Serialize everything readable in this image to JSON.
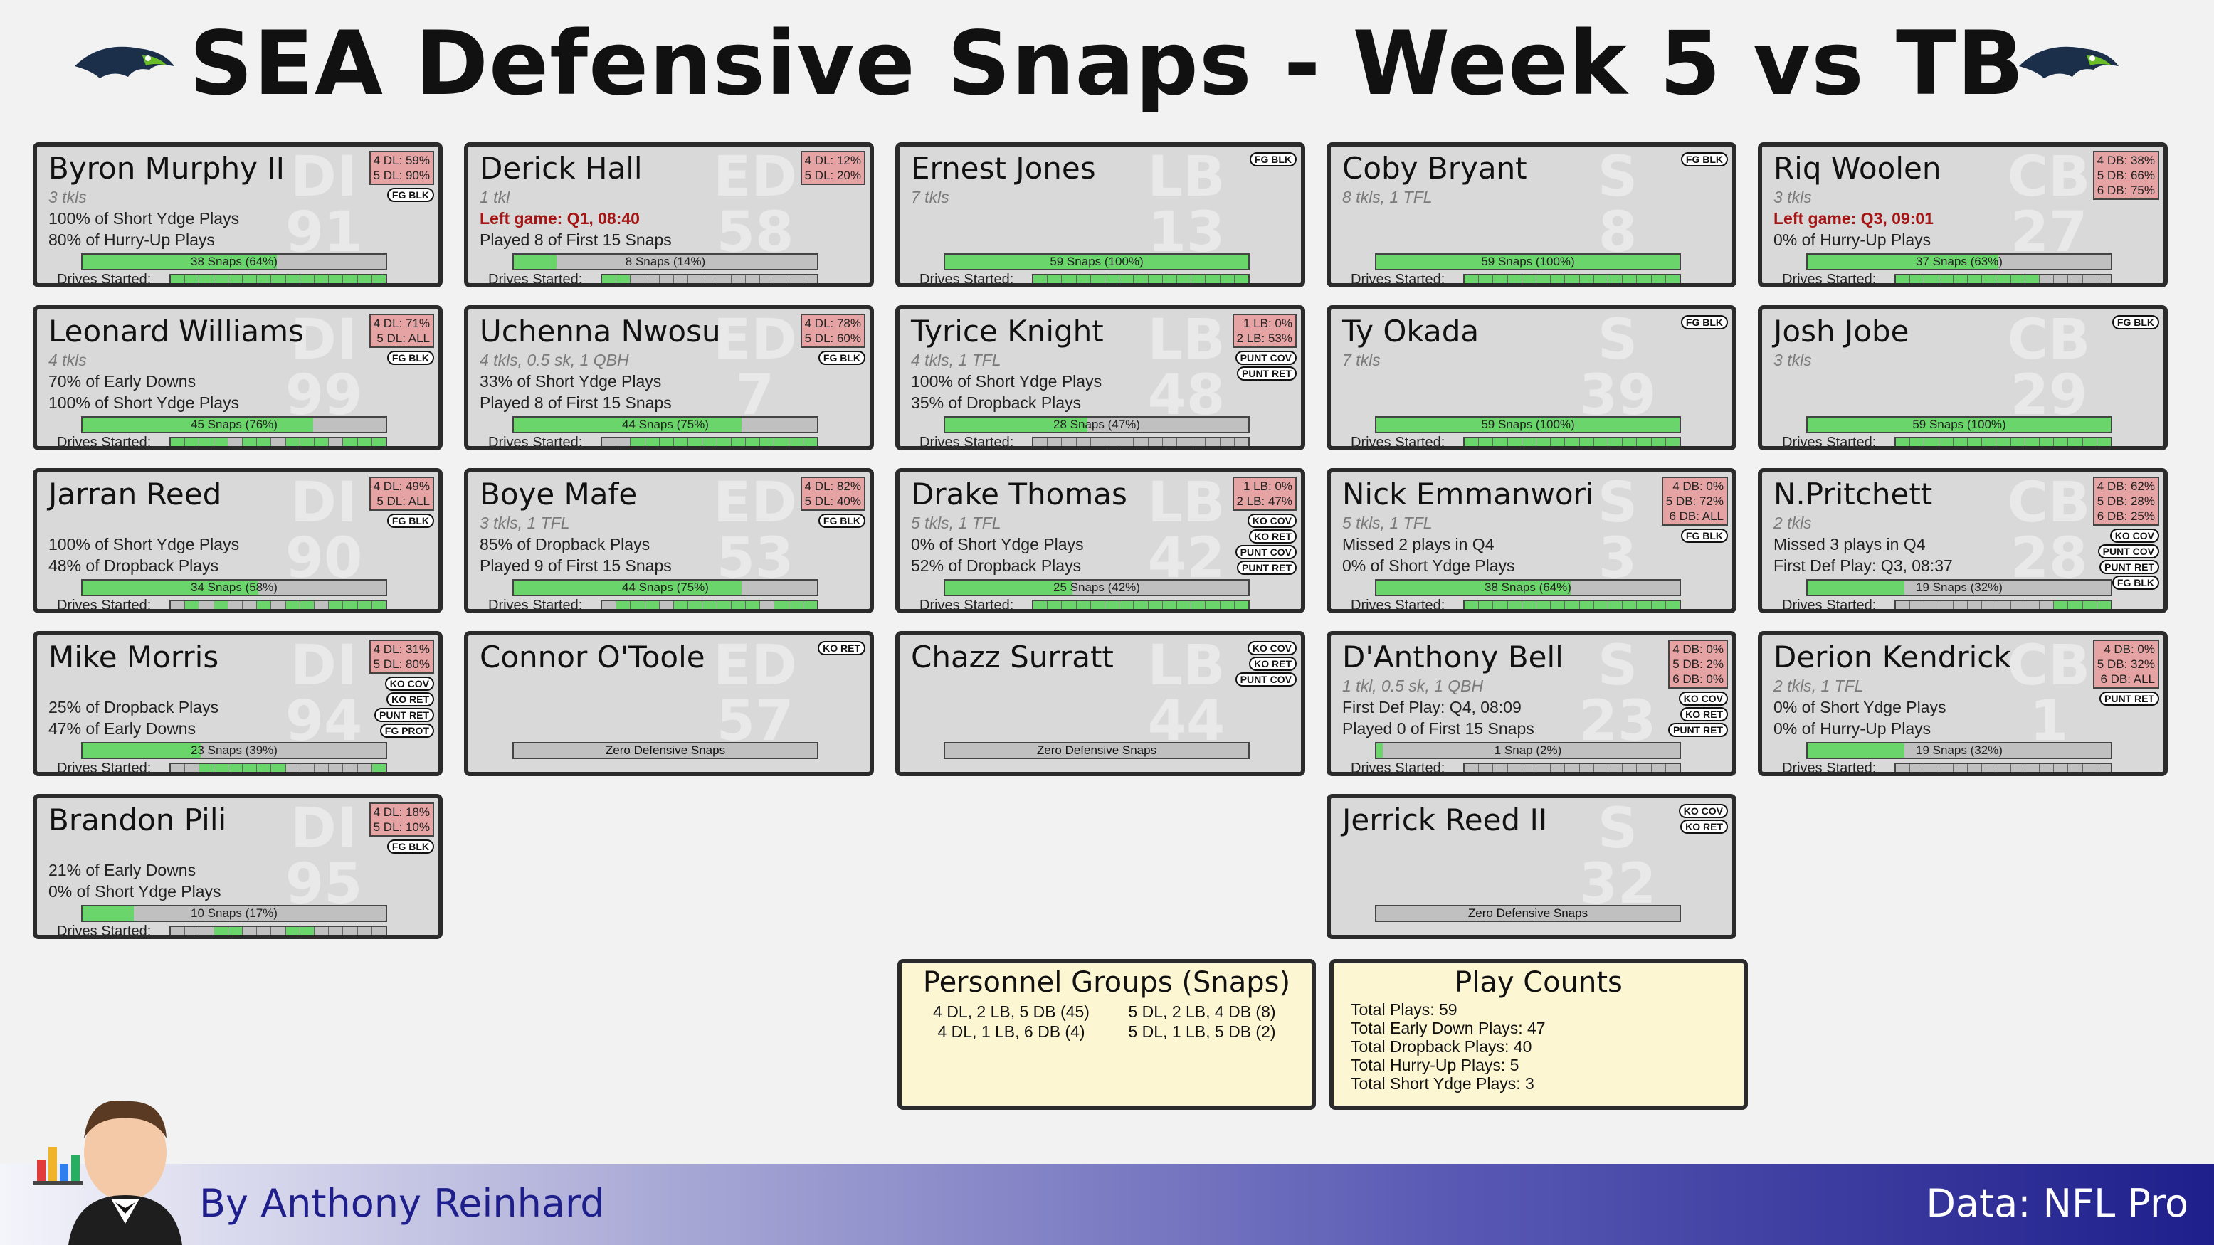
{
  "title": "SEA Defensive Snaps - Week 5 vs TB",
  "footer": {
    "byline": "By Anthony Reinhard",
    "source": "Data: NFL Pro"
  },
  "icons": {
    "team_logo": "seahawks-logo-icon",
    "author": "waiter-with-chart-icon"
  },
  "colors": {
    "snap_fill": "#6ad56a",
    "bar_bg": "#c0c0c0",
    "pct_box": "#e5a3a3",
    "left_game": "#a51515",
    "summary_bg": "#fdf6d2",
    "footer_dark": "#1f1f8c"
  },
  "players": [
    {
      "name": "Byron Murphy II",
      "pos": "DI",
      "num": "91",
      "stats": "3 tkls",
      "line1": "100% of Short Ydge Plays",
      "line2": "80% of Hurry-Up Plays",
      "snaps": "38 Snaps (64%)",
      "snap_pct": 64,
      "drives": [
        1,
        1,
        1,
        1,
        1,
        1,
        1,
        1,
        1,
        1,
        1,
        1,
        1,
        1,
        1
      ],
      "pct": [
        "4 DL: 59%",
        "5 DL: 90%"
      ],
      "tags": [
        "FG BLK"
      ]
    },
    {
      "name": "Derick Hall",
      "pos": "ED",
      "num": "58",
      "stats": "1 tkl",
      "line1": "Left game: Q1, 08:40",
      "line1_red": true,
      "line2": "Played 8 of First 15 Snaps",
      "snaps": "8 Snaps (14%)",
      "snap_pct": 14,
      "drives": [
        1,
        1,
        0,
        0,
        0,
        0,
        0,
        0,
        0,
        0,
        0,
        0,
        0,
        0,
        0
      ],
      "pct": [
        "4 DL: 12%",
        "5 DL: 20%"
      ],
      "tags": []
    },
    {
      "name": "Ernest Jones",
      "pos": "LB",
      "num": "13",
      "stats": "7 tkls",
      "line1": "",
      "line2": "",
      "snaps": "59 Snaps (100%)",
      "snap_pct": 100,
      "drives": [
        1,
        1,
        1,
        1,
        1,
        1,
        1,
        1,
        1,
        1,
        1,
        1,
        1,
        1,
        1
      ],
      "pct": [],
      "tags": [
        "FG BLK"
      ]
    },
    {
      "name": "Coby Bryant",
      "pos": "S",
      "num": "8",
      "stats": "8 tkls, 1 TFL",
      "line1": "",
      "line2": "",
      "snaps": "59 Snaps (100%)",
      "snap_pct": 100,
      "drives": [
        1,
        1,
        1,
        1,
        1,
        1,
        1,
        1,
        1,
        1,
        1,
        1,
        1,
        1,
        1
      ],
      "pct": [],
      "tags": [
        "FG BLK"
      ]
    },
    {
      "name": "Riq Woolen",
      "pos": "CB",
      "num": "27",
      "stats": "3 tkls",
      "line1": "Left game: Q3, 09:01",
      "line1_red": true,
      "line2": "0% of Hurry-Up Plays",
      "snaps": "37 Snaps (63%)",
      "snap_pct": 63,
      "drives": [
        1,
        1,
        1,
        1,
        1,
        1,
        1,
        1,
        1,
        1,
        0,
        0,
        0,
        0,
        0
      ],
      "pct": [
        "4 DB: 38%",
        "5 DB: 66%",
        "6 DB: 75%"
      ],
      "tags": []
    },
    {
      "name": "Leonard Williams",
      "pos": "DI",
      "num": "99",
      "stats": "4 tkls",
      "line1": "70% of Early Downs",
      "line2": "100% of Short Ydge Plays",
      "snaps": "45 Snaps (76%)",
      "snap_pct": 76,
      "drives": [
        1,
        1,
        1,
        1,
        0,
        1,
        1,
        0,
        1,
        1,
        1,
        0,
        1,
        1,
        1
      ],
      "pct": [
        "4 DL: 71%",
        "5 DL: ALL"
      ],
      "tags": [
        "FG BLK"
      ]
    },
    {
      "name": "Uchenna Nwosu",
      "pos": "ED",
      "num": "7",
      "stats": "4 tkls, 0.5 sk, 1 QBH",
      "line1": "33% of Short Ydge Plays",
      "line2": "Played 8 of First 15 Snaps",
      "snaps": "44 Snaps (75%)",
      "snap_pct": 75,
      "drives": [
        0,
        0,
        1,
        1,
        1,
        1,
        1,
        1,
        1,
        1,
        1,
        1,
        1,
        1,
        1
      ],
      "pct": [
        "4 DL: 78%",
        "5 DL: 60%"
      ],
      "tags": [
        "FG BLK"
      ]
    },
    {
      "name": "Tyrice Knight",
      "pos": "LB",
      "num": "48",
      "stats": "4 tkls, 1 TFL",
      "line1": "100% of Short Ydge Plays",
      "line2": "35% of Dropback Plays",
      "snaps": "28 Snaps (47%)",
      "snap_pct": 47,
      "drives": [
        0,
        0,
        0,
        0,
        0,
        0,
        0,
        0,
        0,
        0,
        0,
        0,
        0,
        0,
        0
      ],
      "pct": [
        "1 LB: 0%",
        "2 LB: 53%"
      ],
      "tags": [
        "PUNT COV",
        "PUNT RET"
      ]
    },
    {
      "name": "Ty Okada",
      "pos": "S",
      "num": "39",
      "stats": "7 tkls",
      "line1": "",
      "line2": "",
      "snaps": "59 Snaps (100%)",
      "snap_pct": 100,
      "drives": [
        1,
        1,
        1,
        1,
        1,
        1,
        1,
        1,
        1,
        1,
        1,
        1,
        1,
        1,
        1
      ],
      "pct": [],
      "tags": [
        "FG BLK"
      ]
    },
    {
      "name": "Josh Jobe",
      "pos": "CB",
      "num": "29",
      "stats": "3 tkls",
      "line1": "",
      "line2": "",
      "snaps": "59 Snaps (100%)",
      "snap_pct": 100,
      "drives": [
        1,
        1,
        1,
        1,
        1,
        1,
        1,
        1,
        1,
        1,
        1,
        1,
        1,
        1,
        1
      ],
      "pct": [],
      "tags": [
        "FG BLK"
      ]
    },
    {
      "name": "Jarran Reed",
      "pos": "DI",
      "num": "90",
      "stats": "",
      "line1": "100% of Short Ydge Plays",
      "line2": "48% of Dropback Plays",
      "snaps": "34 Snaps (58%)",
      "snap_pct": 58,
      "drives": [
        0,
        1,
        0,
        1,
        0,
        0,
        1,
        0,
        1,
        1,
        0,
        1,
        1,
        1,
        1
      ],
      "pct": [
        "4 DL: 49%",
        "5 DL: ALL"
      ],
      "tags": [
        "FG BLK"
      ]
    },
    {
      "name": "Boye Mafe",
      "pos": "ED",
      "num": "53",
      "stats": "3 tkls, 1 TFL",
      "line1": "85% of Dropback Plays",
      "line2": "Played 9 of First 15 Snaps",
      "snaps": "44 Snaps (75%)",
      "snap_pct": 75,
      "drives": [
        0,
        1,
        1,
        1,
        0,
        1,
        1,
        1,
        1,
        1,
        1,
        0,
        1,
        1,
        1
      ],
      "pct": [
        "4 DL: 82%",
        "5 DL: 40%"
      ],
      "tags": [
        "FG BLK"
      ]
    },
    {
      "name": "Drake Thomas",
      "pos": "LB",
      "num": "42",
      "stats": "5 tkls, 1 TFL",
      "line1": "0% of Short Ydge Plays",
      "line2": "52% of Dropback Plays",
      "snaps": "25 Snaps (42%)",
      "snap_pct": 42,
      "drives": [
        1,
        1,
        1,
        1,
        1,
        1,
        1,
        1,
        1,
        1,
        1,
        1,
        1,
        1,
        1
      ],
      "pct": [
        "1 LB: 0%",
        "2 LB: 47%"
      ],
      "tags": [
        "KO COV",
        "KO RET",
        "PUNT COV",
        "PUNT RET"
      ]
    },
    {
      "name": "Nick Emmanwori",
      "pos": "S",
      "num": "3",
      "stats": "5 tkls, 1 TFL",
      "line1": "Missed 2 plays in Q4",
      "line2": "0% of Short Ydge Plays",
      "snaps": "38 Snaps (64%)",
      "snap_pct": 64,
      "drives": [
        1,
        1,
        1,
        1,
        1,
        1,
        1,
        1,
        1,
        1,
        1,
        1,
        1,
        1,
        1
      ],
      "pct": [
        "4 DB: 0%",
        "5 DB: 72%",
        "6 DB: ALL"
      ],
      "tags": [
        "FG BLK"
      ]
    },
    {
      "name": "N.Pritchett",
      "pos": "CB",
      "num": "28",
      "stats": "2 tkls",
      "line1": "Missed 3 plays in Q4",
      "line2": "First Def Play: Q3, 08:37",
      "snaps": "19 Snaps (32%)",
      "snap_pct": 32,
      "drives": [
        0,
        0,
        0,
        0,
        0,
        0,
        0,
        0,
        0,
        0,
        0,
        1,
        1,
        1,
        1
      ],
      "pct": [
        "4 DB: 62%",
        "5 DB: 28%",
        "6 DB: 25%"
      ],
      "tags": [
        "KO COV",
        "PUNT COV",
        "PUNT RET",
        "FG BLK"
      ]
    },
    {
      "name": "Mike Morris",
      "pos": "DI",
      "num": "94",
      "stats": "",
      "line1": "25% of Dropback Plays",
      "line2": "47% of Early Downs",
      "snaps": "23 Snaps (39%)",
      "snap_pct": 39,
      "drives": [
        0,
        0,
        1,
        1,
        1,
        1,
        1,
        1,
        0,
        0,
        0,
        0,
        0,
        0,
        1
      ],
      "pct": [
        "4 DL: 31%",
        "5 DL: 80%"
      ],
      "tags": [
        "KO COV",
        "KO RET",
        "PUNT RET",
        "FG PROT"
      ]
    },
    {
      "name": "Connor O'Toole",
      "pos": "ED",
      "num": "57",
      "stats": "",
      "line1": "",
      "line2": "",
      "zero": "Zero Defensive Snaps",
      "pct": [],
      "tags": [
        "KO RET"
      ]
    },
    {
      "name": "Chazz Surratt",
      "pos": "LB",
      "num": "44",
      "stats": "",
      "line1": "",
      "line2": "",
      "zero": "Zero Defensive Snaps",
      "pct": [],
      "tags": [
        "KO COV",
        "KO RET",
        "PUNT COV"
      ]
    },
    {
      "name": "D'Anthony Bell",
      "pos": "S",
      "num": "23",
      "stats": "1 tkl, 0.5 sk, 1 QBH",
      "line1": "First Def Play: Q4, 08:09",
      "line2": "Played 0 of First 15 Snaps",
      "snaps": "1 Snap (2%)",
      "snap_pct": 2,
      "drives": [
        0,
        0,
        0,
        0,
        0,
        0,
        0,
        0,
        0,
        0,
        0,
        0,
        0,
        0,
        0
      ],
      "pct": [
        "4 DB: 0%",
        "5 DB: 2%",
        "6 DB: 0%"
      ],
      "tags": [
        "KO COV",
        "KO RET",
        "PUNT RET"
      ]
    },
    {
      "name": "Derion Kendrick",
      "pos": "CB",
      "num": "1",
      "stats": "2 tkls, 1 TFL",
      "line1": "0% of Short Ydge Plays",
      "line2": "0% of Hurry-Up Plays",
      "snaps": "19 Snaps (32%)",
      "snap_pct": 32,
      "drives": [
        0,
        0,
        0,
        0,
        0,
        0,
        0,
        0,
        0,
        0,
        0,
        0,
        0,
        0,
        0
      ],
      "pct": [
        "4 DB: 0%",
        "5 DB: 32%",
        "6 DB: ALL"
      ],
      "tags": [
        "PUNT RET"
      ]
    },
    {
      "name": "Brandon Pili",
      "pos": "DI",
      "num": "95",
      "stats": "",
      "line1": "21% of Early Downs",
      "line2": "0% of Short Ydge Plays",
      "snaps": "10 Snaps (17%)",
      "snap_pct": 17,
      "drives": [
        0,
        0,
        0,
        1,
        1,
        0,
        0,
        0,
        1,
        1,
        0,
        0,
        0,
        0,
        0
      ],
      "pct": [
        "4 DL: 18%",
        "5 DL: 10%"
      ],
      "tags": [
        "FG BLK"
      ]
    },
    {
      "name": "Jerrick Reed II",
      "pos": "S",
      "num": "32",
      "stats": "",
      "line1": "",
      "line2": "",
      "zero": "Zero Defensive Snaps",
      "pct": [],
      "tags": [
        "KO COV",
        "KO RET"
      ]
    }
  ],
  "personnel": {
    "title": "Personnel Groups (Snaps)",
    "items": [
      "4 DL, 2 LB, 5 DB (45)",
      "5 DL, 2 LB, 4 DB (8)",
      "4 DL, 1 LB, 6 DB (4)",
      "5 DL, 1 LB, 5 DB (2)"
    ]
  },
  "playcounts": {
    "title": "Play Counts",
    "items": [
      "Total Plays: 59",
      "Total Early Down Plays: 47",
      "Total Dropback Plays: 40",
      "Total Hurry-Up Plays: 5",
      "Total Short Ydge Plays: 3"
    ]
  },
  "labels": {
    "drives": "Drives Started:"
  }
}
